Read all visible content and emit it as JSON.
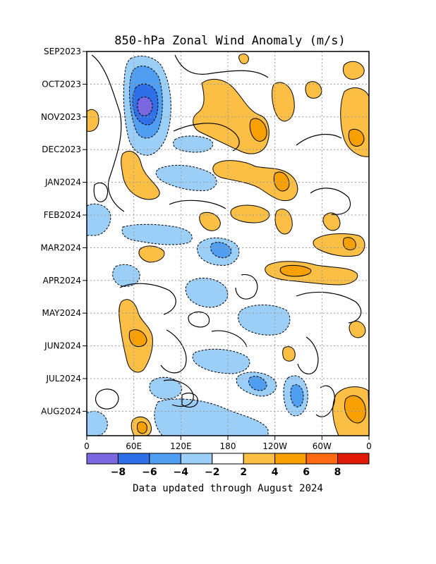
{
  "chart_data": {
    "type": "heatmap",
    "title": "850-hPa Zonal Wind Anomaly (m/s)",
    "footer": "Data updated through August 2024",
    "x_ticks": [
      "0",
      "60E",
      "120E",
      "180",
      "120W",
      "60W",
      "0"
    ],
    "x_range_deg": [
      0,
      360
    ],
    "y_ticks": [
      "SEP2023",
      "OCT2023",
      "NOV2023",
      "DEC2023",
      "JAN2024",
      "FEB2024",
      "MAR2024",
      "APR2024",
      "MAY2024",
      "JUN2024",
      "JUL2024",
      "AUG2024"
    ],
    "y_direction": "time increases downward",
    "grid": "dotted",
    "colorbar": {
      "labels": [
        "-8",
        "-6",
        "-4",
        "-2",
        "2",
        "4",
        "6",
        "8"
      ],
      "levels": [
        -8,
        -6,
        -4,
        -2,
        2,
        4,
        6,
        8
      ],
      "colors": [
        "#7b68e0",
        "#2f6fe8",
        "#4f9ef2",
        "#9ccff8",
        "#ffffff",
        "#fbbf46",
        "#f7a000",
        "#ff6a12",
        "#e01a06"
      ]
    },
    "anomaly_features": [
      {
        "label": "easterly max (below -8)",
        "lon": 73,
        "month": 2.0,
        "value": -9
      },
      {
        "label": "westerly",
        "lon": 260,
        "month": 1.2,
        "value": 4.5
      },
      {
        "label": "westerly",
        "lon": 175,
        "month": 3.6,
        "value": 5
      },
      {
        "label": "westerly",
        "lon": 330,
        "month": 2.2,
        "value": 4.5
      },
      {
        "label": "westerly",
        "lon": 268,
        "month": 6.7,
        "value": 4
      },
      {
        "label": "easterly",
        "lon": 150,
        "month": 6.1,
        "value": -4.5
      },
      {
        "label": "westerly",
        "lon": 72,
        "month": 8.7,
        "value": 4
      },
      {
        "label": "westerly",
        "lon": 340,
        "month": 11.3,
        "value": 4.5
      },
      {
        "label": "easterly",
        "lon": 268,
        "month": 11.0,
        "value": -4
      }
    ]
  }
}
